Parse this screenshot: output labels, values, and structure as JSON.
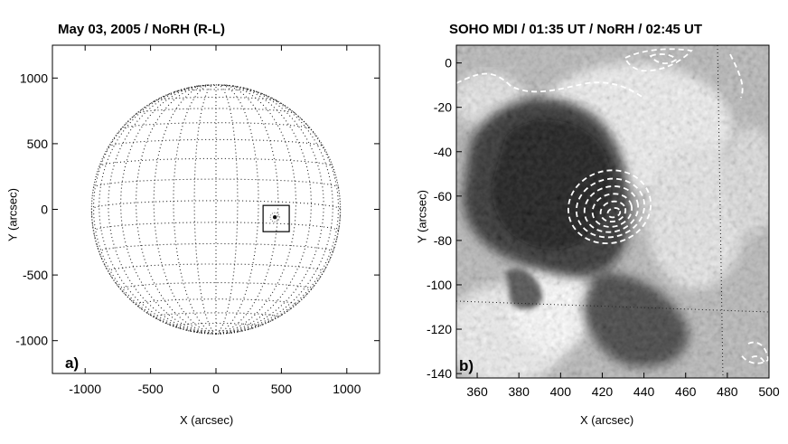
{
  "chart_data": [
    {
      "type": "scatter",
      "panel_label": "a)",
      "title": "May 03, 2005 / NoRH (R-L)",
      "xlabel": "X (arcsec)",
      "ylabel": "Y (arcsec)",
      "xlim": [
        -1250,
        1250
      ],
      "ylim": [
        -1250,
        1250
      ],
      "xticks": [
        -1000,
        -500,
        0,
        500,
        1000
      ],
      "yticks": [
        -1000,
        -500,
        0,
        500,
        1000
      ],
      "solar_radius": 950,
      "grid": "heliographic-dotted",
      "annotation_box": {
        "x": [
          360,
          560
        ],
        "y": [
          -170,
          30
        ]
      },
      "source_position": {
        "x": 450,
        "y": -60
      }
    },
    {
      "type": "heatmap",
      "panel_label": "b)",
      "title": "SOHO MDI / 01:35 UT / NoRH / 02:45 UT",
      "xlabel": "X (arcsec)",
      "ylabel": "Y (arcsec)",
      "xlim": [
        350,
        500
      ],
      "ylim": [
        -142,
        8
      ],
      "xticks": [
        360,
        380,
        400,
        420,
        440,
        460,
        480,
        500
      ],
      "yticks": [
        0,
        -20,
        -40,
        -60,
        -80,
        -100,
        -120,
        -140
      ],
      "contour_center": {
        "x": 425,
        "y": -67
      },
      "colormap": "grayscale",
      "contour_color": "#ffffff"
    }
  ]
}
